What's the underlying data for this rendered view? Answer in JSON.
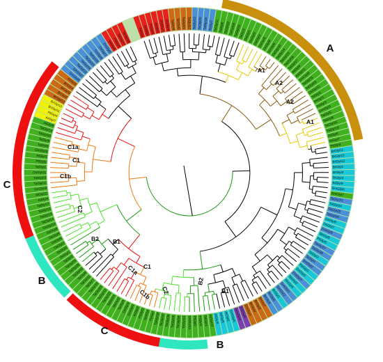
{
  "figure": {
    "group_arcs": [
      {
        "label": "A",
        "color": "#c8900c"
      },
      {
        "label": "C",
        "color": "#ee1010"
      },
      {
        "label": "B",
        "color": "#2ee6c0"
      },
      {
        "label": "C",
        "color": "#ee1010"
      },
      {
        "label": "B",
        "color": "#2ee6c0"
      }
    ],
    "subclade_labels": [
      "A1",
      "A2",
      "A2",
      "A1",
      "C1a",
      "C1",
      "C1b",
      "C2",
      "B2",
      "B1",
      "C1a",
      "C1",
      "C1b",
      "C2",
      "B2",
      "B1"
    ],
    "tip_labels": [
      "PpGlyI",
      "SmGlyI",
      "PtGlyI3",
      "AtGlyI2",
      "ZmGlyI1",
      "OsGlyI4",
      "TaGlyI9",
      "SbGlyI2",
      "TaGlyI21",
      "TaGlyI22",
      "TaGlyI12",
      "TaGlyI20",
      "TaGlyI18",
      "TaGlyI7",
      "TaGlyI11",
      "TaGlyI6",
      "TaGlyI32",
      "TaGlyI28",
      "TaGlyI33",
      "TaGlyI2",
      "OsGlyI1",
      "OsGlyI2",
      "OsGlyI3",
      "OsGlyI5",
      "OsGlyI9",
      "OsGlyI8",
      "OsGlyI10",
      "TaGlyI14",
      "TaGlyI15",
      "TaGlyI16",
      "TaGlyI17",
      "AtGlyI4",
      "AtGlyI11",
      "GmGlyI8",
      "TaGlyI31",
      "TaGlyI29",
      "OsGlyI11",
      "TaGlyI1",
      "PtGlyI3",
      "AtGlyI3",
      "GmGlyI3",
      "TaGlyI5",
      "TaGlyI8",
      "TaGlyI10",
      "TaGlyI19",
      "AtGlyI6",
      "AtGlyI7",
      "PtGlyI4",
      "BrGlyI11",
      "BrGlyI10",
      "BrGlyI12",
      "BrGlyI2",
      "BrGlyI3",
      "BrGlyI4",
      "AtGlyI9",
      "GmGlyI6",
      "GmGlyI7",
      "TaGlyI23",
      "TaGlyI24",
      "TaGlyI25",
      "TaGlyI26",
      "OsGlyI6",
      "OsGlyI7",
      "ZmGlyI5",
      "SbGlyI5",
      "PtGlyI5",
      "TaGlyI27",
      "TaGlyI30",
      "TaGlyI3",
      "TaGlyI4",
      "SmGlyI2",
      "PpGlyI2",
      "ZmGlyI2",
      "ZmGlyI3",
      "SbGlyI3",
      "SbGlyI4",
      "GmGlyI1",
      "GmGlyI2",
      "BrGlyI1",
      "BrGlyI5",
      "BrGlyI6",
      "BrGlyI7",
      "BrGlyI8",
      "BrGlyI9",
      "ZmGlyI4",
      "ZmGlyI6",
      "GmGlyI4",
      "GmGlyI5",
      "AtGlyI1",
      "AtGlyI5",
      "AtGlyI8",
      "AtGlyI10",
      "SbGlyI1",
      "PtGlyI1",
      "PtGlyI2",
      "OsGlyI12",
      "TaGlyI13",
      "TaGlyI34",
      "TaGlyI35",
      "TaGlyI36",
      "TaGlyI37",
      "TaGlyI38"
    ],
    "colors": {
      "ring_green": "#3fb01e",
      "ring_light": "#bce0a8",
      "label_red": "#e8201c",
      "label_blue": "#4a90d9",
      "label_orange": "#cc6a14",
      "label_purple": "#7a3fb0",
      "label_cyan": "#18c8d8",
      "label_yellow": "#f2f200",
      "clade_A1": "#e6c800",
      "clade_A2": "#8a5a10",
      "clade_C1": "#e81010",
      "clade_C2": "#f07a10",
      "clade_B1": "#1a9a10",
      "clade_B2": "#50e030",
      "branch": "#000000"
    }
  }
}
